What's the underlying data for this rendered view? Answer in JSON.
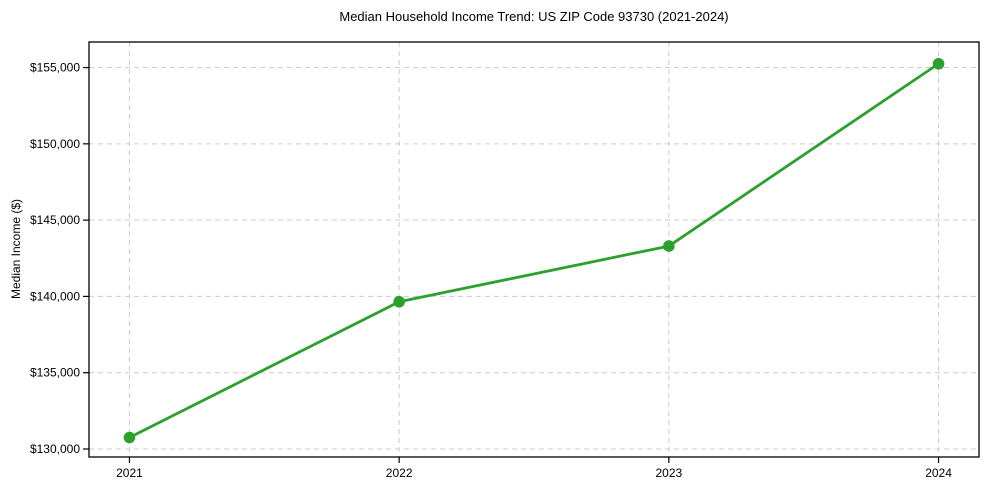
{
  "figure": {
    "background": "#ffffff"
  },
  "chart_data": {
    "type": "line",
    "title": "Median Household Income Trend: US ZIP Code 93730 (2021-2024)",
    "xlabel": "",
    "ylabel": "Median Income ($)",
    "x": [
      2021,
      2022,
      2023,
      2024
    ],
    "series": [
      {
        "name": "Median Household Income",
        "values": [
          130750,
          139650,
          143300,
          155250
        ],
        "color": "#2ca02c",
        "marker": "circle",
        "line_width": 2.8,
        "marker_radius": 5.8
      }
    ],
    "xlim": [
      2020.85,
      2024.15
    ],
    "ylim": [
      129475,
      156675
    ],
    "xticks": {
      "values": [
        2021,
        2022,
        2023,
        2024
      ],
      "labels": [
        "2021",
        "2022",
        "2023",
        "2024"
      ]
    },
    "yticks": {
      "values": [
        130000,
        135000,
        140000,
        145000,
        150000,
        155000
      ],
      "labels": [
        "$130,000",
        "$135,000",
        "$140,000",
        "$145,000",
        "$150,000",
        "$155,000"
      ]
    },
    "grid": {
      "show": true,
      "style": "dashed",
      "color": "#cccccc"
    },
    "legend": {
      "show": false
    },
    "axis_color": "#000000",
    "text_color": "#000000"
  }
}
